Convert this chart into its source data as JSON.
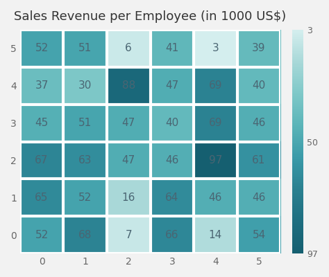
{
  "title": "Sales Revenue per Employee (in 1000 US$)",
  "values_by_row": [
    [
      52,
      51,
      6,
      41,
      3,
      39
    ],
    [
      37,
      30,
      88,
      47,
      69,
      40
    ],
    [
      45,
      51,
      47,
      40,
      69,
      46
    ],
    [
      67,
      63,
      47,
      46,
      97,
      61
    ],
    [
      65,
      52,
      16,
      64,
      46,
      46
    ],
    [
      52,
      68,
      7,
      66,
      14,
      54
    ]
  ],
  "x_labels": [
    "0",
    "1",
    "2",
    "3",
    "4",
    "5"
  ],
  "y_labels": [
    "5",
    "4",
    "3",
    "2",
    "1",
    "0"
  ],
  "y_tick_labels": [
    "0",
    "1",
    "2",
    "3",
    "4",
    "5"
  ],
  "colorbar_ticks": [
    3,
    50,
    97
  ],
  "vmin": 3,
  "vmax": 97,
  "bg_color": "#f2f2f2",
  "cell_text_color": "#4a6572",
  "title_fontsize": 13,
  "tick_fontsize": 10,
  "annotation_fontsize": 11,
  "grid_color": "#ffffff",
  "grid_linewidth": 3
}
